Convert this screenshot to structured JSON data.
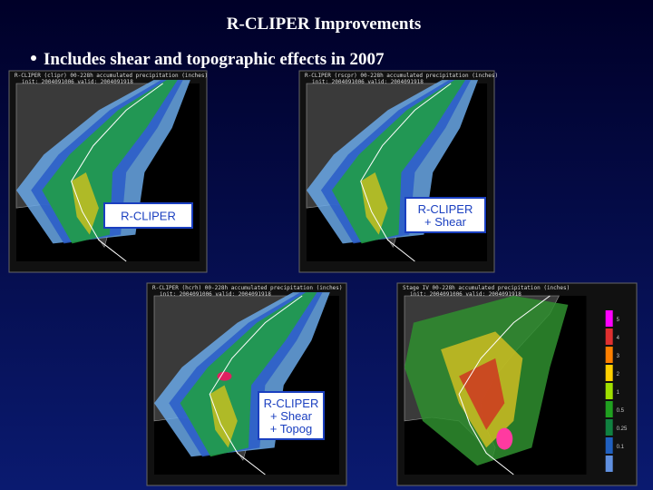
{
  "title": "R-CLIPER Improvements",
  "bullets": [
    "Includes shear and topographic effects in 2007"
  ],
  "panels": [
    {
      "header": "R-CLIPER (clipr) 00-228h accumulated precipitation (inches)",
      "subheader": "init: 2004091006   valid: 2004091918",
      "label": "R-CLIPER"
    },
    {
      "header": "R-CLIPER (rscpr) 00-228h accumulated precipitation (inches)",
      "subheader": "init: 2004091006   valid: 2004091918",
      "label": "R-CLIPER + Shear"
    },
    {
      "header": "R-CLIPER (hcrh) 00-228h accumulated precipitation (inches)",
      "subheader": "init: 2004091006   valid: 2004091918",
      "label": "R-CLIPER + Shear + Topog"
    },
    {
      "header": "Stage IV 00-228h accumulated precipitation (inches)",
      "subheader": "init: 2004091006   valid: 2004091918",
      "colorbar_labels": [
        "5",
        "4",
        "3",
        "2",
        "1",
        "0.5",
        "0.25",
        "0.1"
      ]
    }
  ]
}
